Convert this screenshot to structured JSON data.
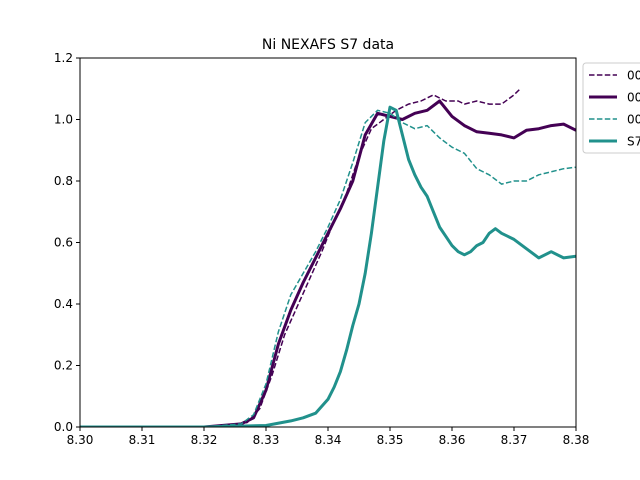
{
  "chart_data": {
    "type": "line",
    "title": "Ni NEXAFS S7 data",
    "xlabel": "",
    "ylabel": "",
    "xlim": [
      8.3,
      8.38
    ],
    "ylim": [
      0.0,
      1.2
    ],
    "xticks": [
      "8.30",
      "8.31",
      "8.32",
      "8.33",
      "8.34",
      "8.35",
      "8.36",
      "8.37",
      "8.38"
    ],
    "yticks": [
      "0.0",
      "0.2",
      "0.4",
      "0.6",
      "0.8",
      "1.0",
      "1.2"
    ],
    "grid": false,
    "legend_position": "upper right, outside plot (clipped)",
    "series": [
      {
        "name": "00",
        "color": "#440154",
        "style": "dashed",
        "linewidth": 1.5,
        "x": [
          8.3,
          8.32,
          8.325,
          8.327,
          8.329,
          8.331,
          8.333,
          8.335,
          8.337,
          8.339,
          8.341,
          8.343,
          8.345,
          8.347,
          8.349,
          8.351,
          8.353,
          8.355,
          8.357,
          8.358,
          8.359,
          8.361,
          8.362,
          8.364,
          8.366,
          8.368,
          8.37,
          8.371
        ],
        "y": [
          0.0,
          0.0,
          0.005,
          0.015,
          0.06,
          0.17,
          0.3,
          0.39,
          0.48,
          0.57,
          0.67,
          0.76,
          0.88,
          0.97,
          1.0,
          1.03,
          1.05,
          1.06,
          1.08,
          1.07,
          1.06,
          1.06,
          1.05,
          1.06,
          1.05,
          1.05,
          1.08,
          1.1
        ]
      },
      {
        "name": "00",
        "color": "#440154",
        "style": "solid",
        "linewidth": 3,
        "x": [
          8.3,
          8.32,
          8.326,
          8.328,
          8.33,
          8.332,
          8.334,
          8.336,
          8.338,
          8.34,
          8.342,
          8.344,
          8.346,
          8.348,
          8.35,
          8.352,
          8.354,
          8.356,
          8.358,
          8.36,
          8.362,
          8.364,
          8.366,
          8.368,
          8.37,
          8.372,
          8.374,
          8.376,
          8.378,
          8.38
        ],
        "y": [
          0.0,
          0.0,
          0.01,
          0.03,
          0.12,
          0.27,
          0.38,
          0.47,
          0.55,
          0.63,
          0.71,
          0.8,
          0.95,
          1.02,
          1.01,
          1.0,
          1.02,
          1.03,
          1.06,
          1.01,
          0.98,
          0.96,
          0.955,
          0.95,
          0.94,
          0.965,
          0.97,
          0.98,
          0.985,
          0.965
        ]
      },
      {
        "name": "00",
        "color": "#21918c",
        "style": "dashed",
        "linewidth": 1.5,
        "x": [
          8.3,
          8.32,
          8.326,
          8.328,
          8.33,
          8.332,
          8.334,
          8.336,
          8.338,
          8.34,
          8.342,
          8.344,
          8.346,
          8.348,
          8.35,
          8.352,
          8.354,
          8.356,
          8.358,
          8.36,
          8.362,
          8.364,
          8.366,
          8.368,
          8.37,
          8.372,
          8.374,
          8.376,
          8.378,
          8.38
        ],
        "y": [
          0.0,
          0.0,
          0.01,
          0.04,
          0.14,
          0.31,
          0.43,
          0.5,
          0.57,
          0.65,
          0.74,
          0.86,
          0.99,
          1.03,
          1.02,
          0.99,
          0.97,
          0.98,
          0.94,
          0.91,
          0.89,
          0.84,
          0.82,
          0.79,
          0.8,
          0.8,
          0.82,
          0.83,
          0.84,
          0.845
        ]
      },
      {
        "name": "S7",
        "color": "#21918c",
        "style": "solid",
        "linewidth": 3,
        "x": [
          8.3,
          8.32,
          8.33,
          8.334,
          8.336,
          8.338,
          8.34,
          8.341,
          8.342,
          8.343,
          8.344,
          8.345,
          8.346,
          8.347,
          8.348,
          8.349,
          8.35,
          8.351,
          8.352,
          8.353,
          8.354,
          8.355,
          8.356,
          8.357,
          8.358,
          8.359,
          8.36,
          8.361,
          8.362,
          8.363,
          8.364,
          8.365,
          8.366,
          8.367,
          8.368,
          8.369,
          8.37,
          8.372,
          8.374,
          8.376,
          8.378,
          8.38
        ],
        "y": [
          0.0,
          0.0,
          0.005,
          0.02,
          0.03,
          0.045,
          0.09,
          0.13,
          0.18,
          0.25,
          0.33,
          0.4,
          0.5,
          0.63,
          0.78,
          0.93,
          1.04,
          1.03,
          0.95,
          0.87,
          0.82,
          0.78,
          0.75,
          0.7,
          0.65,
          0.62,
          0.59,
          0.57,
          0.56,
          0.57,
          0.59,
          0.6,
          0.63,
          0.645,
          0.63,
          0.62,
          0.61,
          0.58,
          0.55,
          0.57,
          0.55,
          0.555
        ]
      }
    ]
  }
}
